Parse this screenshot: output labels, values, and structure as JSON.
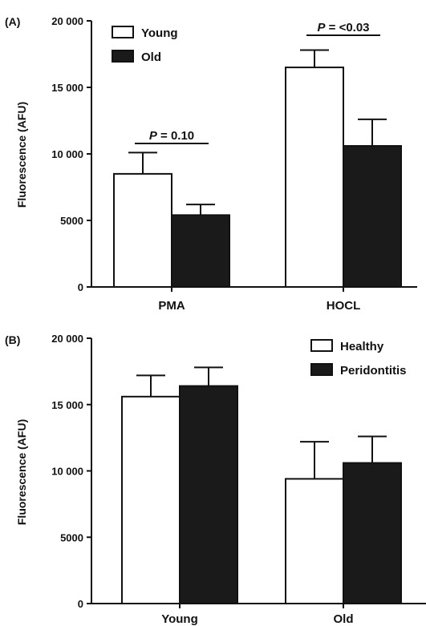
{
  "chart_data": [
    {
      "panel_label": "(A)",
      "type": "bar",
      "categories": [
        "PMA",
        "HOCL"
      ],
      "ylabel": "Fluorescence (AFU)",
      "ylim": [
        0,
        20000
      ],
      "yticks": [
        0,
        5000,
        10000,
        15000,
        20000
      ],
      "ytick_labels": [
        "0",
        "5000",
        "10 000",
        "15 000",
        "20 000"
      ],
      "series": [
        {
          "name": "Young",
          "fill": "#ffffff",
          "values": [
            8500,
            16500
          ],
          "errors": [
            1600,
            1300
          ]
        },
        {
          "name": "Old",
          "fill": "#1a1a1a",
          "values": [
            5400,
            10600
          ],
          "errors": [
            800,
            2000
          ]
        }
      ],
      "annotations": [
        {
          "category": "PMA",
          "p_symbol": "P",
          "p_text": " = 0.10"
        },
        {
          "category": "HOCL",
          "p_symbol": "P",
          "p_text": " = <0.03"
        }
      ],
      "legend_position": "top-left",
      "grid": false
    },
    {
      "panel_label": "(B)",
      "type": "bar",
      "categories": [
        "Young",
        "Old"
      ],
      "ylabel": "Fluorescence (AFU)",
      "ylim": [
        0,
        20000
      ],
      "yticks": [
        0,
        5000,
        10000,
        15000,
        20000
      ],
      "ytick_labels": [
        "0",
        "5000",
        "10 000",
        "15 000",
        "20 000"
      ],
      "series": [
        {
          "name": "Healthy",
          "fill": "#ffffff",
          "values": [
            15600,
            9400
          ],
          "errors": [
            1600,
            2800
          ]
        },
        {
          "name": "Peridontitis",
          "fill": "#1a1a1a",
          "values": [
            16400,
            10600
          ],
          "errors": [
            1400,
            2000
          ]
        }
      ],
      "annotations": [],
      "legend_position": "top-right",
      "grid": false
    }
  ]
}
